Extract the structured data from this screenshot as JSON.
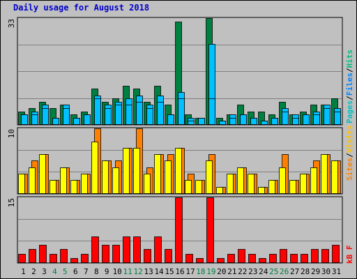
{
  "title": "Daily usage for August 2018",
  "chart_data": {
    "type": "bar",
    "title": "Daily usage for August 2018",
    "categories": [
      "1",
      "2",
      "3",
      "4",
      "5",
      "6",
      "7",
      "8",
      "9",
      "10",
      "11",
      "12",
      "13",
      "14",
      "15",
      "16",
      "17",
      "18",
      "19",
      "20",
      "21",
      "22",
      "23",
      "24",
      "25",
      "26",
      "27",
      "28",
      "29",
      "30",
      "31"
    ],
    "weekend_days": [
      4,
      5,
      11,
      12,
      18,
      19,
      25,
      26
    ],
    "panels": [
      {
        "name": "hits-files-pages",
        "ymax": 33,
        "ymax_label": "33",
        "legend": [
          "Pages",
          "Files",
          "Hits"
        ],
        "series": [
          {
            "name": "Hits",
            "color": "#008040",
            "values": [
              4,
              5,
              7,
              5,
              6,
              3,
              4,
              11,
              7,
              8,
              12,
              11,
              7,
              12,
              6,
              32,
              3,
              2,
              33,
              2,
              3,
              6,
              4,
              4,
              3,
              7,
              3,
              4,
              6,
              6,
              8
            ]
          },
          {
            "name": "Files",
            "color": "#00c0ff",
            "values": [
              3,
              4,
              6,
              2,
              6,
              2,
              3,
              9,
              6,
              7,
              8,
              9,
              6,
              9,
              3,
              10,
              2,
              2,
              25,
              1,
              3,
              3,
              2,
              1,
              2,
              5,
              3,
              3,
              4,
              6,
              5
            ]
          },
          {
            "name": "Pages",
            "color": "#00c0ff",
            "values": [
              3,
              3,
              5,
              2,
              5,
              2,
              3,
              8,
              5,
              6,
              6,
              7,
              5,
              7,
              3,
              8,
              1,
              2,
              8,
              1,
              2,
              3,
              2,
              1,
              2,
              4,
              2,
              3,
              3,
              5,
              4
            ]
          }
        ]
      },
      {
        "name": "visits-sites",
        "ymax": 10,
        "ymax_label": "10",
        "legend": [
          "Sites",
          "Visits"
        ],
        "series": [
          {
            "name": "Visits",
            "color": "#ff8000",
            "values": [
              3,
              5,
              6,
              2,
              4,
              2,
              3,
              10,
              5,
              5,
              7,
              10,
              4,
              6,
              6,
              7,
              3,
              2,
              6,
              1,
              3,
              4,
              3,
              1,
              2,
              6,
              2,
              3,
              5,
              6,
              5
            ]
          },
          {
            "name": "Sites",
            "color": "#ffff00",
            "values": [
              3,
              4,
              6,
              2,
              4,
              2,
              3,
              8,
              5,
              4,
              7,
              7,
              3,
              6,
              5,
              7,
              2,
              2,
              5,
              1,
              3,
              4,
              3,
              1,
              2,
              4,
              2,
              3,
              4,
              6,
              5
            ]
          }
        ]
      },
      {
        "name": "kbytes",
        "ymax": 15,
        "ymax_label": "15",
        "legend": [
          "kB F"
        ],
        "series": [
          {
            "name": "kB F",
            "color": "#ff0000",
            "values": [
              2,
              3,
              4,
              2,
              3,
              1,
              2,
              6,
              4,
              4,
              6,
              6,
              3,
              6,
              3,
              15,
              2,
              1,
              15,
              1,
              2,
              3,
              2,
              1,
              2,
              3,
              2,
              2,
              3,
              3,
              4
            ]
          }
        ]
      }
    ]
  }
}
